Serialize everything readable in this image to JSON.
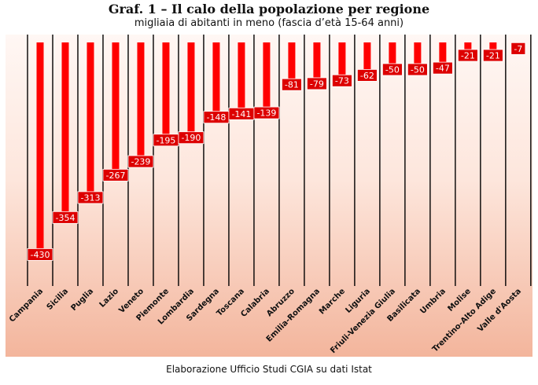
{
  "chart_data": {
    "type": "bar",
    "title": "Graf. 1 – Il calo della popolazione per regione",
    "subtitle": "migliaia di abitanti in meno (fascia d’età 15-64 anni)",
    "categories": [
      "Campania",
      "Sicilia",
      "Puglia",
      "Lazio",
      "Veneto",
      "Piemonte",
      "Lombardia",
      "Sardegna",
      "Toscana",
      "Calabria",
      "Abruzzo",
      "Emilia-Romagna",
      "Marche",
      "Liguria",
      "Friuli-Venezia Giulia",
      "Basilicata",
      "Umbria",
      "Molise",
      "Trentino-Alto Adige",
      "Valle d'Aosta"
    ],
    "values": [
      -430,
      -354,
      -313,
      -267,
      -239,
      -195,
      -190,
      -148,
      -141,
      -139,
      -81,
      -79,
      -73,
      -62,
      -50,
      -50,
      -47,
      -21,
      -21,
      -7
    ],
    "data_labels": [
      "-430",
      "-354",
      "-313",
      "-267",
      "-239",
      "-195",
      "-190",
      "-148",
      "-141",
      "-139",
      "-81",
      "-79",
      "-73",
      "-62",
      "-50",
      "-50",
      "-47",
      "-21",
      "-21",
      "-7"
    ],
    "ylim": [
      -460,
      0
    ],
    "grid": false,
    "colors": {
      "bar": "#ff0000",
      "label_box": "#dd0000",
      "divider": "#000000"
    }
  },
  "footer": {
    "source": "Elaborazione Ufficio Studi CGIA su dati Istat"
  }
}
